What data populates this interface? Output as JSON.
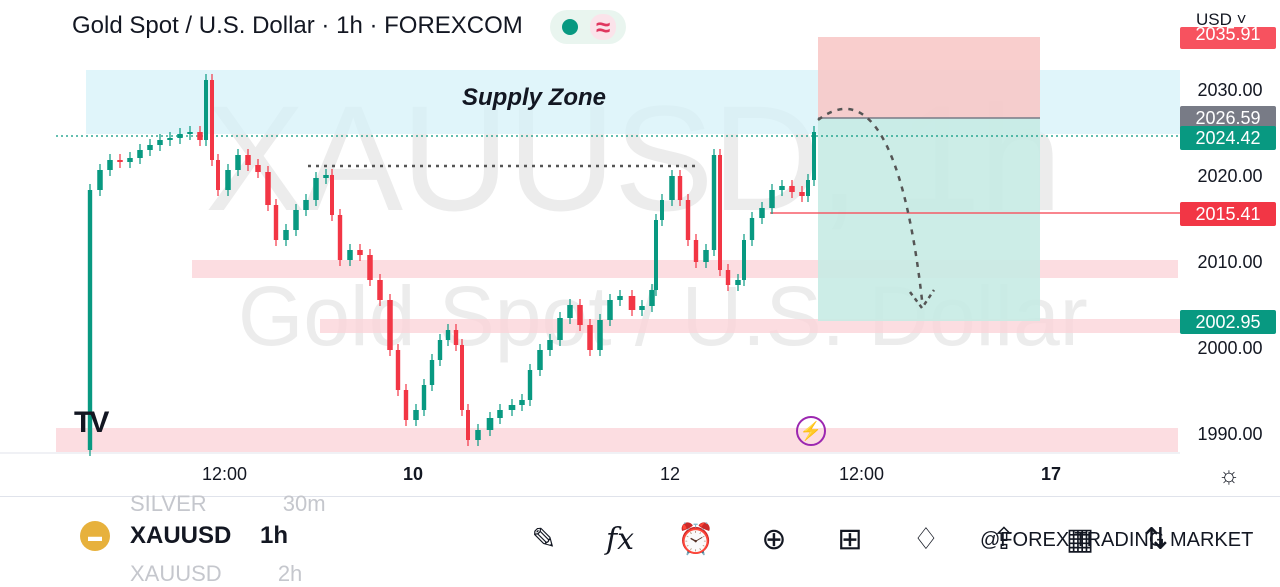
{
  "header": {
    "title": "Gold Spot / U.S. Dollar · 1h · FOREXCOM",
    "wave_symbol": "≈",
    "currency": "USD ˅"
  },
  "watermark": {
    "symbol": "XAUUSD, 1h",
    "name": "Gold Spot / U.S. Dollar"
  },
  "annotations": {
    "supply_zone": "Supply Zone"
  },
  "price_axis": {
    "labels": [
      "2030.00",
      "2020.00",
      "2010.00",
      "2000.00",
      "1990.00"
    ],
    "badges": {
      "target_top": "2035.91",
      "entry": "2026.59",
      "current": "2024.42",
      "level": "2015.41",
      "take_profit": "2002.95"
    }
  },
  "time_axis": {
    "labels": [
      "12:00",
      "10",
      "12",
      "12:00",
      "17"
    ]
  },
  "colors": {
    "up": "#089981",
    "down": "#f23645",
    "zone_blue": "#d6f1f8",
    "zone_red": "#fbd5d9",
    "position_target": "#c7ebe4"
  },
  "icons": {
    "logo": "TV",
    "bolt": "⚡",
    "settings": "☼"
  },
  "bottom_bar": {
    "prev_symbol": "SILVER",
    "prev_tf": "30m",
    "symbol": "XAUUSD",
    "timeframe": "1h",
    "next_symbol": "XAUUSD",
    "next_tf": "2h",
    "credit": "@FOREX TRADING MARKET",
    "tools": [
      "draw",
      "indicators",
      "alert",
      "add",
      "layouts",
      "ideas",
      "share",
      "calendar",
      "compare"
    ]
  }
}
